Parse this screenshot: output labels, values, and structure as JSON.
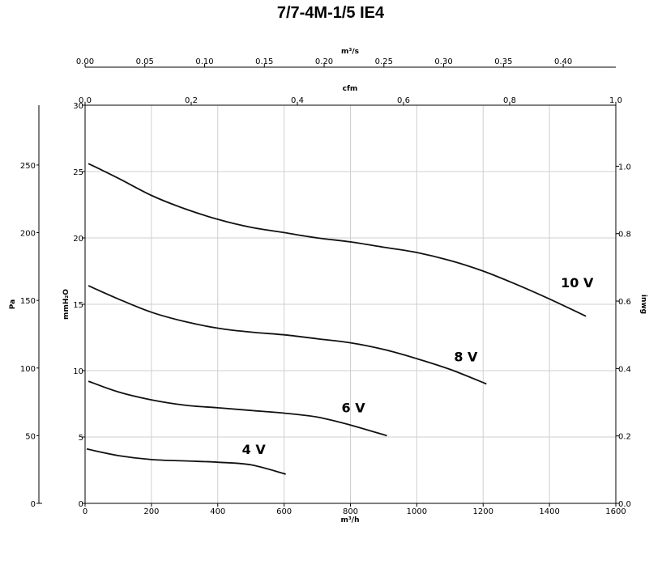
{
  "chart_data": {
    "type": "line",
    "title": "7/7-4M-1/5 IE4",
    "xlabel": "m³/h",
    "xlim": [
      0,
      1600
    ],
    "x_ticks": [
      "0",
      "200",
      "400",
      "600",
      "800",
      "1000",
      "1200",
      "1400",
      "1600"
    ],
    "ylabel": "mmH₂O",
    "ylim": [
      0,
      30
    ],
    "y_ticks": [
      "0",
      "5",
      "10",
      "15",
      "20",
      "25",
      "30"
    ],
    "secondary_axes": {
      "top_outer": {
        "label": "m³/s",
        "range": [
          0,
          0.444
        ],
        "ticks": [
          "0.00",
          "0.05",
          "0.10",
          "0.15",
          "0.20",
          "0.25",
          "0.30",
          "0.35",
          "0.40"
        ]
      },
      "top_inner": {
        "label": "cfm",
        "range": [
          0,
          1.0
        ],
        "ticks": [
          "0.0",
          "0.2",
          "0.4",
          "0.6",
          "0.8",
          "1.0"
        ]
      },
      "left_outer": {
        "label": "Pa",
        "range": [
          0,
          294.2
        ],
        "ticks": [
          "0",
          "50",
          "100",
          "150",
          "200",
          "250"
        ]
      },
      "right": {
        "label": "inwg",
        "range": [
          0,
          1.181
        ],
        "ticks": [
          "0.0",
          "0.2",
          "0.4",
          "0.6",
          "0.8",
          "1.0"
        ]
      }
    },
    "grid": true,
    "series": [
      {
        "name": "10 V",
        "x": [
          10,
          100,
          200,
          300,
          400,
          500,
          600,
          700,
          800,
          900,
          1000,
          1100,
          1200,
          1300,
          1400,
          1510
        ],
        "y": [
          25.6,
          24.5,
          23.2,
          22.2,
          21.4,
          20.8,
          20.4,
          20.0,
          19.7,
          19.3,
          18.9,
          18.3,
          17.5,
          16.5,
          15.4,
          14.1
        ]
      },
      {
        "name": "8 V",
        "x": [
          10,
          100,
          200,
          300,
          400,
          500,
          600,
          700,
          800,
          900,
          1000,
          1100,
          1210
        ],
        "y": [
          16.4,
          15.4,
          14.4,
          13.7,
          13.2,
          12.9,
          12.7,
          12.4,
          12.1,
          11.6,
          10.9,
          10.1,
          9.0
        ]
      },
      {
        "name": "6 V",
        "x": [
          10,
          100,
          200,
          300,
          400,
          500,
          600,
          700,
          800,
          910
        ],
        "y": [
          9.2,
          8.4,
          7.8,
          7.4,
          7.2,
          7.0,
          6.8,
          6.5,
          5.9,
          5.1
        ]
      },
      {
        "name": "4 V",
        "x": [
          5,
          100,
          200,
          300,
          400,
          500,
          605
        ],
        "y": [
          4.1,
          3.6,
          3.3,
          3.2,
          3.1,
          2.9,
          2.2
        ]
      }
    ]
  }
}
